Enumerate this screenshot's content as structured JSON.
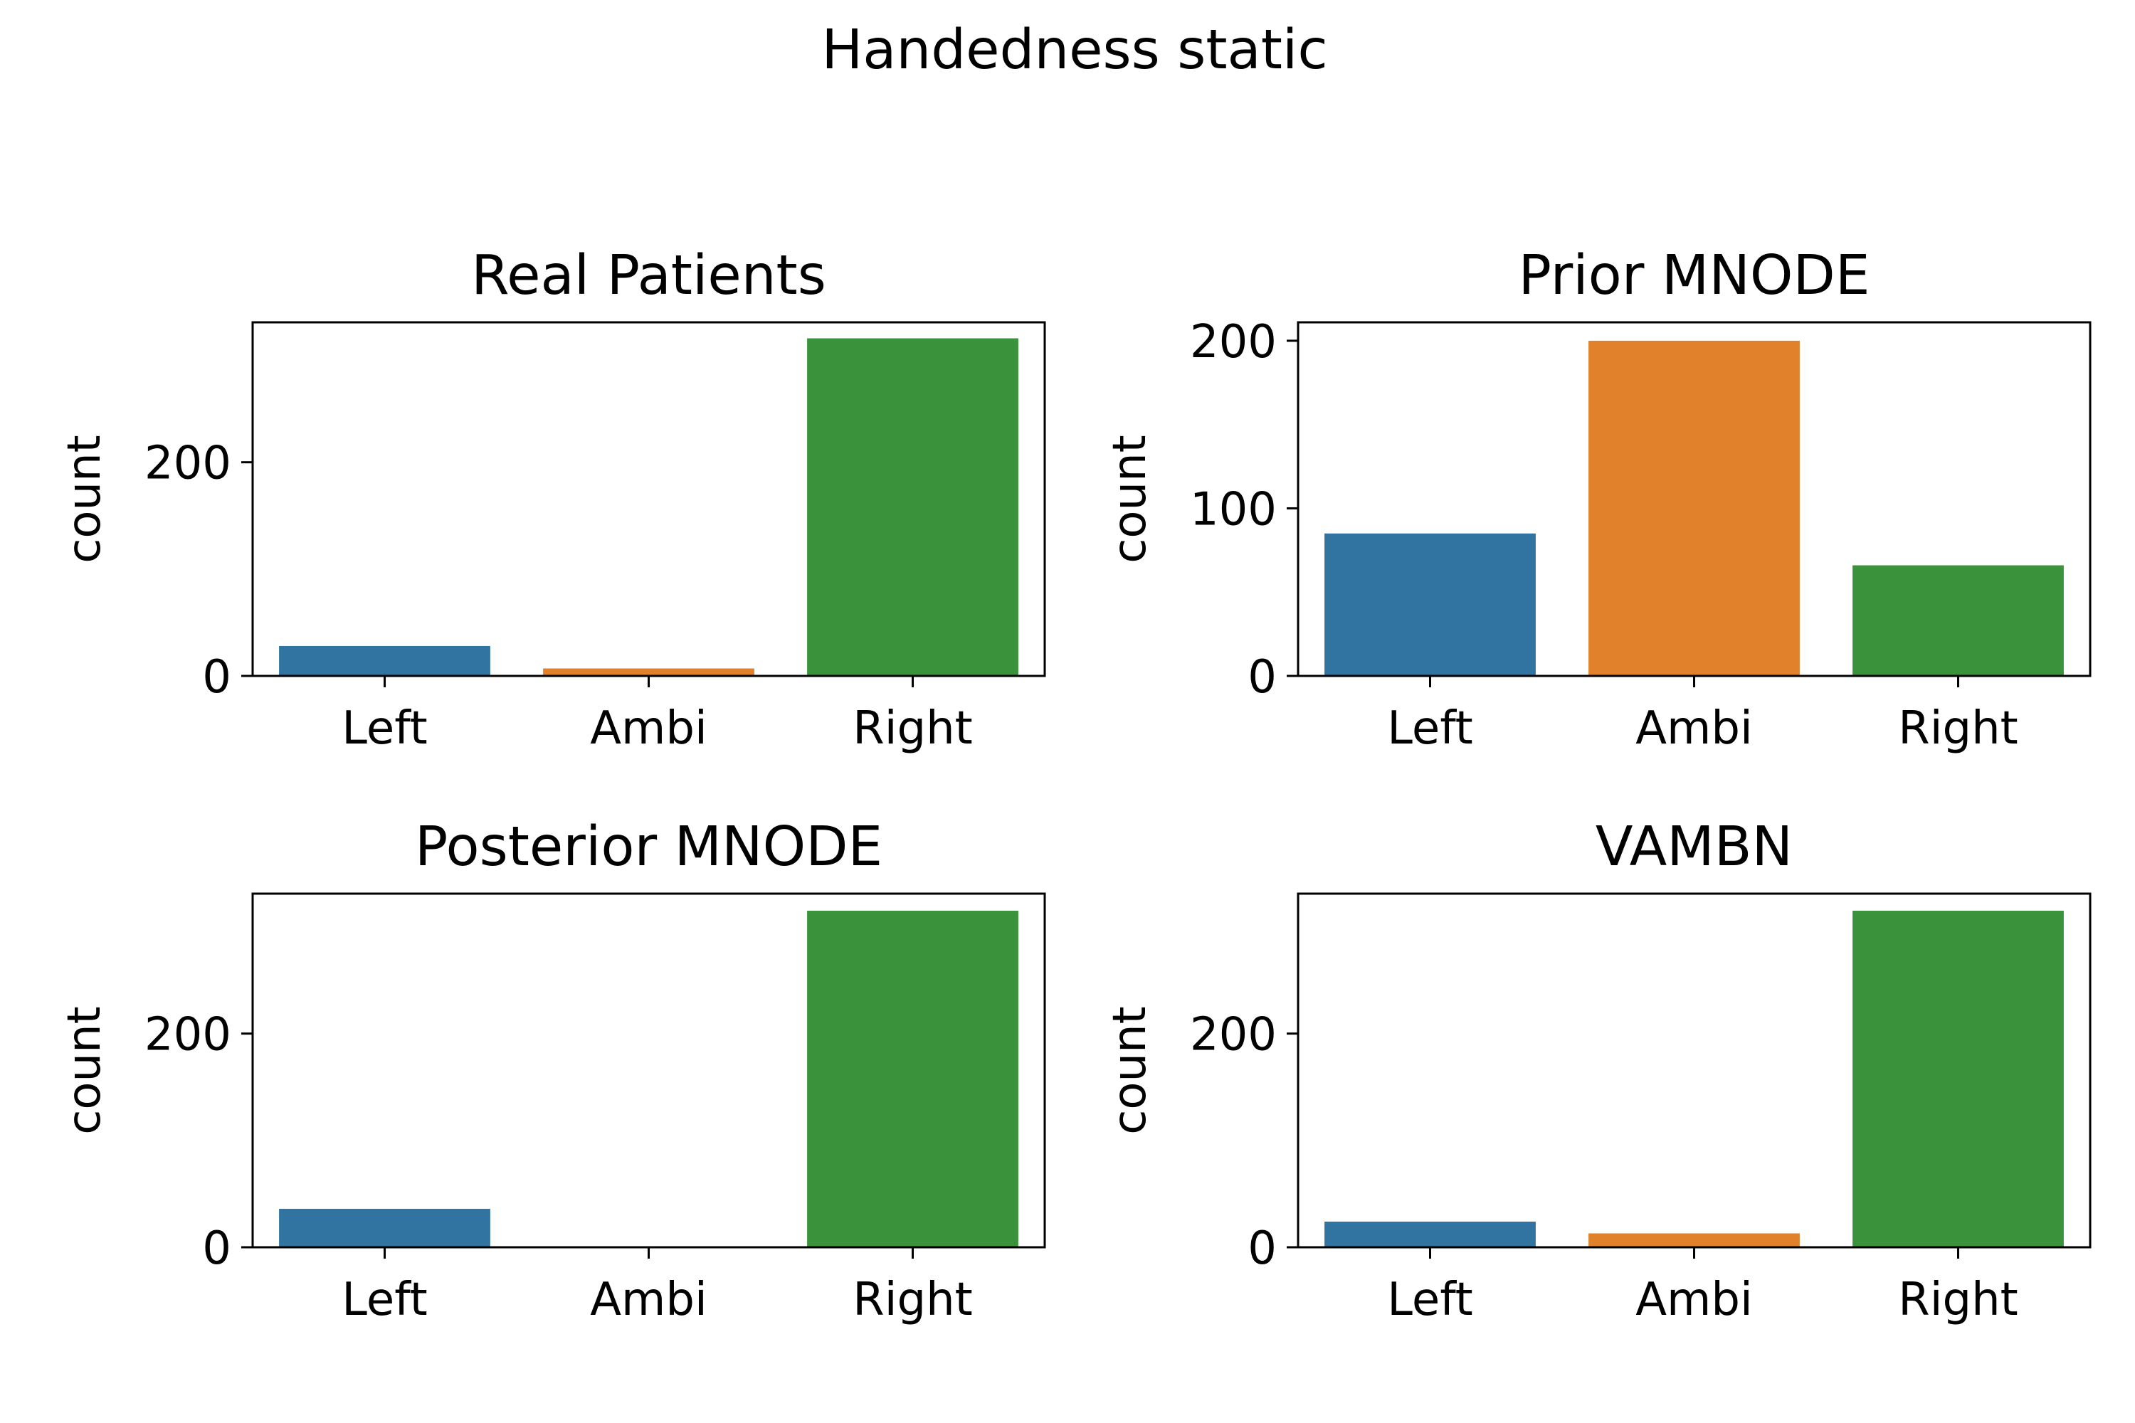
{
  "figure": {
    "title": "Handedness static"
  },
  "chart_data": [
    {
      "type": "bar",
      "title": "Real Patients",
      "xlabel": "",
      "ylabel": "count",
      "categories": [
        "Left",
        "Ambi",
        "Right"
      ],
      "values": [
        28,
        7,
        316
      ],
      "colors": [
        "#3274a1",
        "#e1812c",
        "#3a923a"
      ],
      "ylim": [
        0,
        331
      ],
      "yticks": [
        0,
        200
      ],
      "grid": false
    },
    {
      "type": "bar",
      "title": "Prior MNODE",
      "xlabel": "",
      "ylabel": "count",
      "categories": [
        "Left",
        "Ambi",
        "Right"
      ],
      "values": [
        85,
        200,
        66
      ],
      "colors": [
        "#3274a1",
        "#e1812c",
        "#3a923a"
      ],
      "ylim": [
        0,
        211
      ],
      "yticks": [
        0,
        100,
        200
      ],
      "grid": false
    },
    {
      "type": "bar",
      "title": "Posterior MNODE",
      "xlabel": "",
      "ylabel": "count",
      "categories": [
        "Left",
        "Ambi",
        "Right"
      ],
      "values": [
        36,
        0,
        315
      ],
      "colors": [
        "#3274a1",
        "#e1812c",
        "#3a923a"
      ],
      "ylim": [
        0,
        331
      ],
      "yticks": [
        0,
        200
      ],
      "grid": false
    },
    {
      "type": "bar",
      "title": "VAMBN",
      "xlabel": "",
      "ylabel": "count",
      "categories": [
        "Left",
        "Ambi",
        "Right"
      ],
      "values": [
        24,
        13,
        315
      ],
      "colors": [
        "#3274a1",
        "#e1812c",
        "#3a923a"
      ],
      "ylim": [
        0,
        331
      ],
      "yticks": [
        0,
        200
      ],
      "grid": false
    }
  ]
}
